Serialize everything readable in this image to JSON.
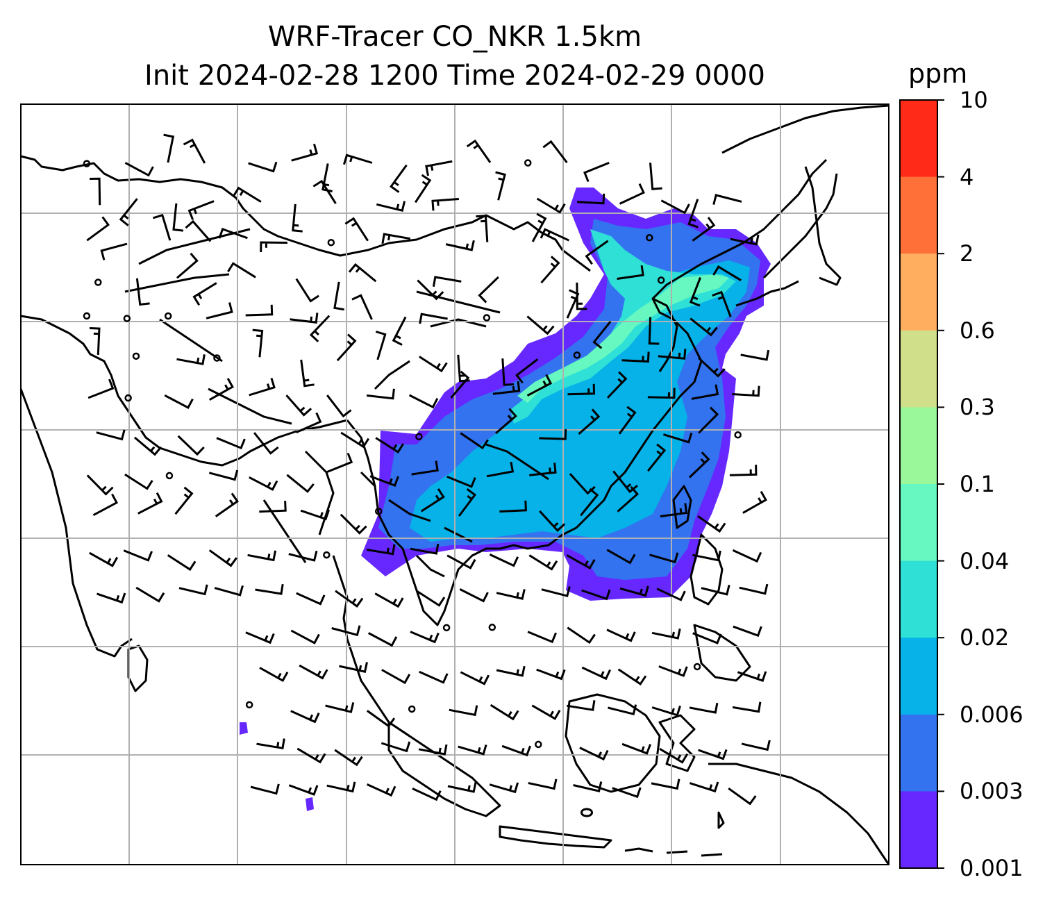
{
  "title": {
    "line1": "WRF-Tracer CO_NKR 1.5km",
    "line2": "Init 2024-02-28 1200 Time 2024-02-29 0000"
  },
  "colorbar": {
    "unit": "ppm",
    "tick_labels": [
      "10",
      "4",
      "2",
      "0.6",
      "0.3",
      "0.1",
      "0.04",
      "0.02",
      "0.006",
      "0.003",
      "0.001"
    ],
    "colors": [
      "#ff2a18",
      "#ff7038",
      "#ffae60",
      "#d0e08a",
      "#9af79a",
      "#66f8c0",
      "#2ee0d6",
      "#06b2e8",
      "#3373f0",
      "#6628ff"
    ]
  },
  "map": {
    "type": "tracer-concentration-with-wind-barbs",
    "region": "East & Southeast Asia",
    "gridlines": true,
    "plume_levels": [
      "0.001",
      "0.003",
      "0.006",
      "0.02",
      "0.04"
    ]
  }
}
